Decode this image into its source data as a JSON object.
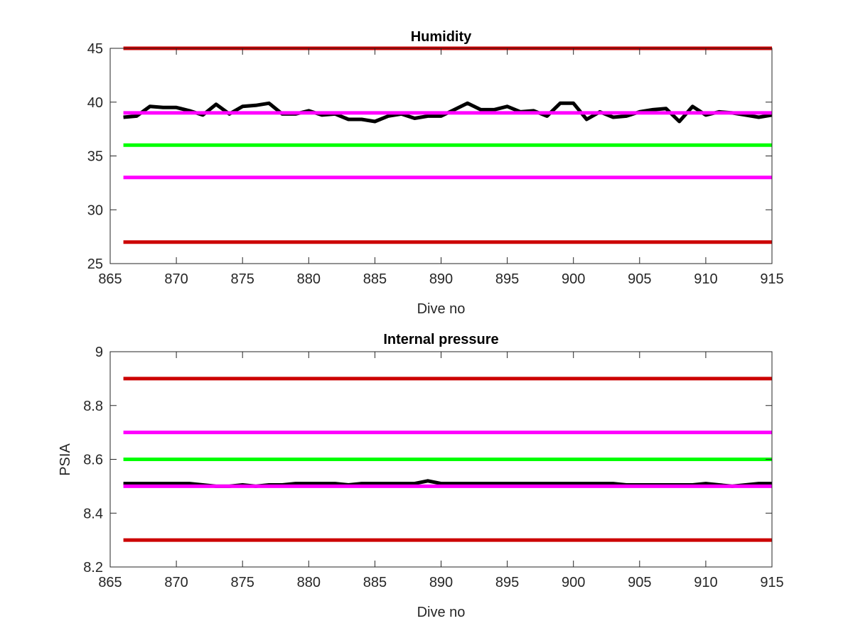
{
  "colors": {
    "background": "#ffffff",
    "axes": "#262626",
    "limit_red": "#cc0000",
    "limit_magenta": "#ff00ff",
    "target_green": "#00ff00",
    "data_black": "#000000"
  },
  "chart_data": [
    {
      "type": "line",
      "title": "Humidity",
      "xlabel": "Dive no",
      "ylabel": "",
      "xlim": [
        865,
        915
      ],
      "ylim": [
        25,
        45
      ],
      "xticks": [
        865,
        870,
        875,
        880,
        885,
        890,
        895,
        900,
        905,
        910,
        915
      ],
      "yticks": [
        25,
        30,
        35,
        40,
        45
      ],
      "grid": false,
      "series": [
        {
          "kind": "data",
          "color": "#000000",
          "x": [
            866,
            867,
            868,
            869,
            870,
            871,
            872,
            873,
            874,
            875,
            876,
            877,
            878,
            879,
            880,
            881,
            882,
            883,
            884,
            885,
            886,
            887,
            888,
            889,
            890,
            891,
            892,
            893,
            894,
            895,
            896,
            897,
            898,
            899,
            900,
            901,
            902,
            903,
            904,
            905,
            906,
            907,
            908,
            909,
            910,
            911,
            912,
            913,
            914,
            915
          ],
          "y": [
            38.6,
            38.7,
            39.6,
            39.5,
            39.5,
            39.2,
            38.8,
            39.8,
            38.9,
            39.6,
            39.7,
            39.9,
            38.9,
            38.9,
            39.2,
            38.8,
            38.9,
            38.4,
            38.4,
            38.2,
            38.7,
            38.9,
            38.5,
            38.7,
            38.7,
            39.3,
            39.9,
            39.3,
            39.3,
            39.6,
            39.1,
            39.2,
            38.7,
            39.9,
            39.9,
            38.4,
            39.1,
            38.6,
            38.7,
            39.1,
            39.3,
            39.4,
            38.2,
            39.6,
            38.8,
            39.1,
            39,
            38.8,
            38.6,
            38.8
          ]
        },
        {
          "kind": "limit",
          "color": "#cc0000",
          "x": [
            866,
            915
          ],
          "y": [
            45,
            45
          ]
        },
        {
          "kind": "limit",
          "color": "#ff00ff",
          "x": [
            866,
            915
          ],
          "y": [
            39,
            39
          ]
        },
        {
          "kind": "target",
          "color": "#00ff00",
          "x": [
            866,
            915
          ],
          "y": [
            36,
            36
          ]
        },
        {
          "kind": "limit",
          "color": "#ff00ff",
          "x": [
            866,
            915
          ],
          "y": [
            33,
            33
          ]
        },
        {
          "kind": "limit",
          "color": "#cc0000",
          "x": [
            866,
            915
          ],
          "y": [
            27,
            27
          ]
        }
      ]
    },
    {
      "type": "line",
      "title": "Internal pressure",
      "xlabel": "Dive no",
      "ylabel": "PSIA",
      "xlim": [
        865,
        915
      ],
      "ylim": [
        8.2,
        9
      ],
      "xticks": [
        865,
        870,
        875,
        880,
        885,
        890,
        895,
        900,
        905,
        910,
        915
      ],
      "yticks": [
        8.2,
        8.4,
        8.6,
        8.8,
        9
      ],
      "grid": false,
      "series": [
        {
          "kind": "data",
          "color": "#000000",
          "x": [
            866,
            867,
            868,
            869,
            870,
            871,
            872,
            873,
            874,
            875,
            876,
            877,
            878,
            879,
            880,
            881,
            882,
            883,
            884,
            885,
            886,
            887,
            888,
            889,
            890,
            891,
            892,
            893,
            894,
            895,
            896,
            897,
            898,
            899,
            900,
            901,
            902,
            903,
            904,
            905,
            906,
            907,
            908,
            909,
            910,
            911,
            912,
            913,
            914,
            915
          ],
          "y": [
            8.51,
            8.51,
            8.51,
            8.51,
            8.51,
            8.51,
            8.505,
            8.5,
            8.5,
            8.505,
            8.5,
            8.505,
            8.505,
            8.51,
            8.51,
            8.51,
            8.51,
            8.505,
            8.51,
            8.51,
            8.51,
            8.51,
            8.51,
            8.52,
            8.51,
            8.51,
            8.51,
            8.51,
            8.51,
            8.51,
            8.51,
            8.51,
            8.51,
            8.51,
            8.51,
            8.51,
            8.51,
            8.51,
            8.505,
            8.505,
            8.505,
            8.505,
            8.505,
            8.505,
            8.51,
            8.505,
            8.5,
            8.505,
            8.51,
            8.51
          ]
        },
        {
          "kind": "limit",
          "color": "#cc0000",
          "x": [
            866,
            915
          ],
          "y": [
            8.9,
            8.9
          ]
        },
        {
          "kind": "limit",
          "color": "#ff00ff",
          "x": [
            866,
            915
          ],
          "y": [
            8.7,
            8.7
          ]
        },
        {
          "kind": "target",
          "color": "#00ff00",
          "x": [
            866,
            915
          ],
          "y": [
            8.6,
            8.6
          ]
        },
        {
          "kind": "limit",
          "color": "#ff00ff",
          "x": [
            866,
            915
          ],
          "y": [
            8.5,
            8.5
          ]
        },
        {
          "kind": "limit",
          "color": "#cc0000",
          "x": [
            866,
            915
          ],
          "y": [
            8.3,
            8.3
          ]
        }
      ]
    }
  ]
}
